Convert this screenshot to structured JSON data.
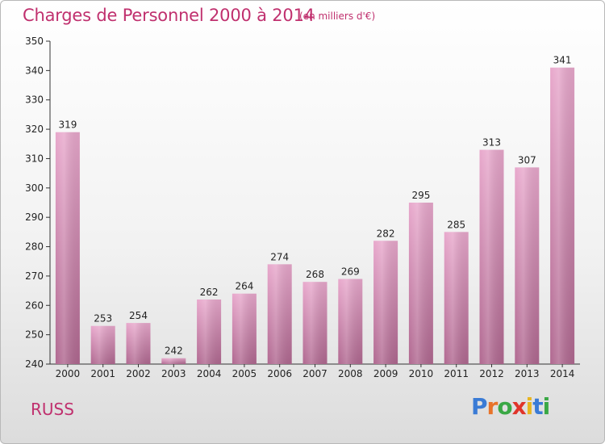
{
  "title": "Charges de Personnel 2000 à 2014",
  "subtitle": "(en milliers d'€)",
  "location": "RUSS",
  "logo": {
    "letters": [
      "P",
      "r",
      "o",
      "x",
      "i",
      "t",
      "i"
    ],
    "colors": [
      "#3a7bd5",
      "#e8732a",
      "#3aa845",
      "#e0342a",
      "#e8b520",
      "#3a7bd5",
      "#3aa845"
    ]
  },
  "colors": {
    "bar_light": "#e8a8cc",
    "bar_dark": "#b06890",
    "accent": "#c0306e"
  },
  "chart_data": {
    "type": "bar",
    "title": "Charges de Personnel 2000 à 2014",
    "subtitle": "(en milliers d'€)",
    "categories": [
      "2000",
      "2001",
      "2002",
      "2003",
      "2004",
      "2005",
      "2006",
      "2007",
      "2008",
      "2009",
      "2010",
      "2011",
      "2012",
      "2013",
      "2014"
    ],
    "values": [
      319,
      253,
      254,
      242,
      262,
      264,
      274,
      268,
      269,
      282,
      295,
      285,
      313,
      307,
      341
    ],
    "ylim": [
      240,
      350
    ],
    "yticks": [
      240,
      250,
      260,
      270,
      280,
      290,
      300,
      310,
      320,
      330,
      340,
      350
    ],
    "grid": false,
    "xlabel": "",
    "ylabel": ""
  }
}
